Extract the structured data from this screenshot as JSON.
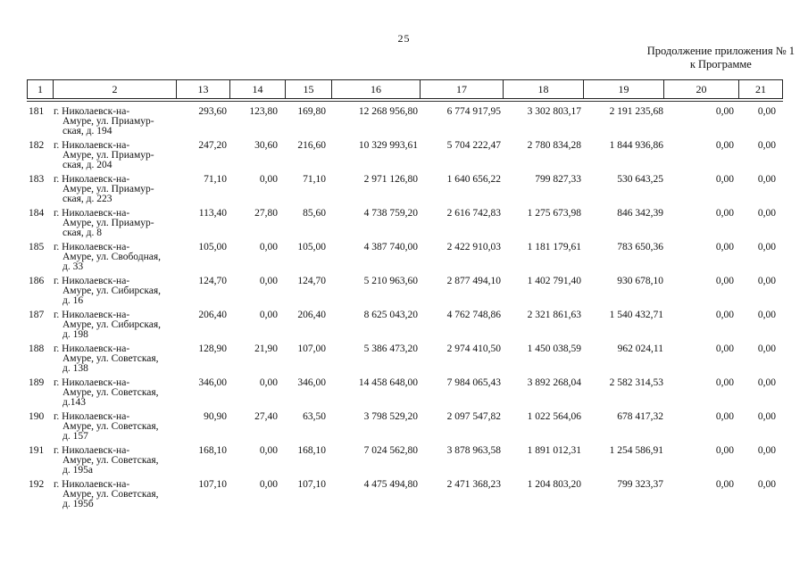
{
  "page": {
    "number": "25",
    "continuation_line1": "Продолжение приложения № 1",
    "continuation_line2": "к Программе"
  },
  "table": {
    "headers": [
      "1",
      "2",
      "13",
      "14",
      "15",
      "16",
      "17",
      "18",
      "19",
      "20",
      "21"
    ],
    "rows": [
      {
        "num": "181",
        "address_lines": [
          "г. Николаевск-на-",
          "Амуре, ул. Приамур-",
          "ская, д. 194"
        ],
        "values": [
          "293,60",
          "123,80",
          "169,80",
          "12 268 956,80",
          "6 774 917,95",
          "3 302 803,17",
          "2 191 235,68",
          "0,00",
          "0,00"
        ]
      },
      {
        "num": "182",
        "address_lines": [
          "г. Николаевск-на-",
          "Амуре, ул. Приамур-",
          "ская, д. 204"
        ],
        "values": [
          "247,20",
          "30,60",
          "216,60",
          "10 329 993,61",
          "5 704 222,47",
          "2 780 834,28",
          "1 844 936,86",
          "0,00",
          "0,00"
        ]
      },
      {
        "num": "183",
        "address_lines": [
          "г. Николаевск-на-",
          "Амуре, ул. Приамур-",
          "ская, д. 223"
        ],
        "values": [
          "71,10",
          "0,00",
          "71,10",
          "2 971 126,80",
          "1 640 656,22",
          "799 827,33",
          "530 643,25",
          "0,00",
          "0,00"
        ]
      },
      {
        "num": "184",
        "address_lines": [
          "г. Николаевск-на-",
          "Амуре, ул. Приамур-",
          "ская, д. 8"
        ],
        "values": [
          "113,40",
          "27,80",
          "85,60",
          "4 738 759,20",
          "2 616 742,83",
          "1 275 673,98",
          "846 342,39",
          "0,00",
          "0,00"
        ]
      },
      {
        "num": "185",
        "address_lines": [
          "г. Николаевск-на-",
          "Амуре, ул. Свободная,",
          "д. 33"
        ],
        "values": [
          "105,00",
          "0,00",
          "105,00",
          "4 387 740,00",
          "2 422 910,03",
          "1 181 179,61",
          "783 650,36",
          "0,00",
          "0,00"
        ]
      },
      {
        "num": "186",
        "address_lines": [
          "г. Николаевск-на-",
          "Амуре, ул. Сибирская,",
          "д. 16"
        ],
        "values": [
          "124,70",
          "0,00",
          "124,70",
          "5 210 963,60",
          "2 877 494,10",
          "1 402 791,40",
          "930 678,10",
          "0,00",
          "0,00"
        ]
      },
      {
        "num": "187",
        "address_lines": [
          "г. Николаевск-на-",
          "Амуре, ул. Сибирская,",
          "д. 198"
        ],
        "values": [
          "206,40",
          "0,00",
          "206,40",
          "8 625 043,20",
          "4 762 748,86",
          "2 321 861,63",
          "1 540 432,71",
          "0,00",
          "0,00"
        ]
      },
      {
        "num": "188",
        "address_lines": [
          "г. Николаевск-на-",
          "Амуре, ул. Советская,",
          "д. 138"
        ],
        "values": [
          "128,90",
          "21,90",
          "107,00",
          "5 386 473,20",
          "2 974 410,50",
          "1 450 038,59",
          "962 024,11",
          "0,00",
          "0,00"
        ]
      },
      {
        "num": "189",
        "address_lines": [
          "г. Николаевск-на-",
          "Амуре, ул. Советская,",
          "д.143"
        ],
        "values": [
          "346,00",
          "0,00",
          "346,00",
          "14 458 648,00",
          "7 984 065,43",
          "3 892 268,04",
          "2 582 314,53",
          "0,00",
          "0,00"
        ]
      },
      {
        "num": "190",
        "address_lines": [
          "г. Николаевск-на-",
          "Амуре, ул. Советская,",
          "д. 157"
        ],
        "values": [
          "90,90",
          "27,40",
          "63,50",
          "3 798 529,20",
          "2 097 547,82",
          "1 022 564,06",
          "678 417,32",
          "0,00",
          "0,00"
        ]
      },
      {
        "num": "191",
        "address_lines": [
          "г. Николаевск-на-",
          "Амуре, ул. Советская,",
          "д. 195а"
        ],
        "values": [
          "168,10",
          "0,00",
          "168,10",
          "7 024 562,80",
          "3 878 963,58",
          "1 891 012,31",
          "1 254 586,91",
          "0,00",
          "0,00"
        ]
      },
      {
        "num": "192",
        "address_lines": [
          "г. Николаевск-на-",
          "Амуре, ул. Советская,",
          "д. 195б"
        ],
        "values": [
          "107,10",
          "0,00",
          "107,10",
          "4 475 494,80",
          "2 471 368,23",
          "1 204 803,20",
          "799 323,37",
          "0,00",
          "0,00"
        ]
      }
    ]
  }
}
